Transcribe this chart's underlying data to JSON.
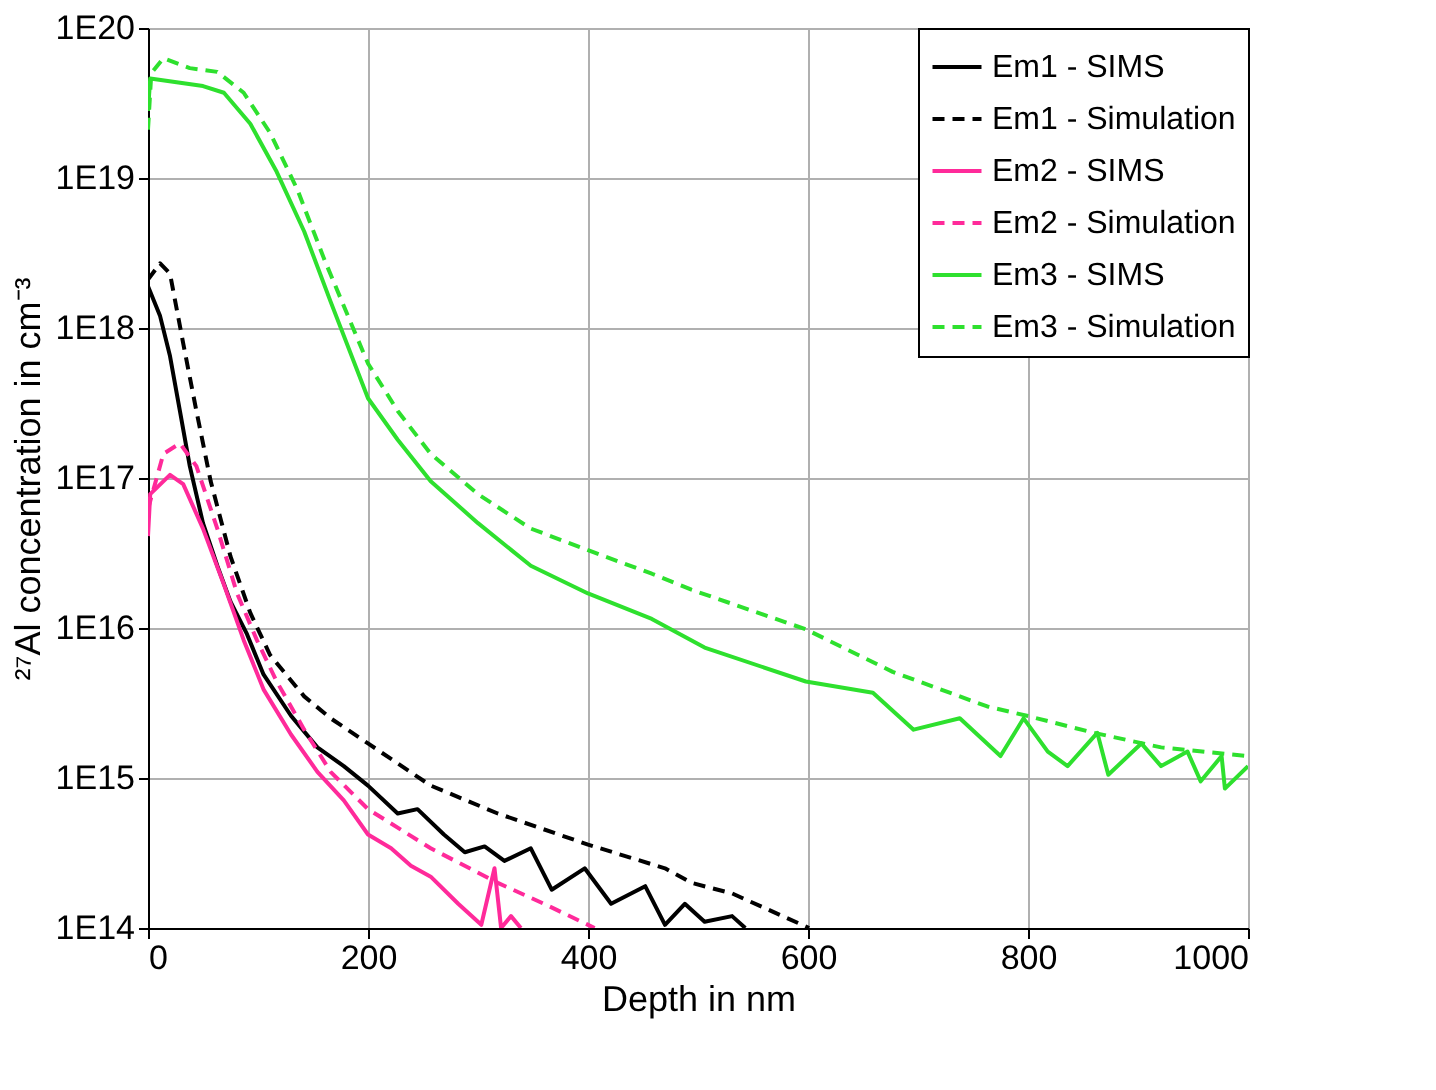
{
  "chart_data": {
    "type": "line",
    "xlabel": "Depth in nm",
    "ylabel": "²⁷Al concentration in cm⁻³",
    "log": true,
    "grid": true,
    "legend": "top right",
    "xlim": [
      0,
      1000
    ],
    "xticks": [
      0,
      200,
      400,
      600,
      800,
      1000
    ],
    "ylim": [
      100000000000000.0,
      1e+20
    ],
    "yticks": [
      {
        "value": 100000000000000.0,
        "label": "1E14"
      },
      {
        "value": 1000000000000000.0,
        "label": "1E15"
      },
      {
        "value": 1e+16,
        "label": "1E16"
      },
      {
        "value": 1e+17,
        "label": "1E17"
      },
      {
        "value": 1e+18,
        "label": "1E18"
      },
      {
        "value": 1e+19,
        "label": "1E19"
      },
      {
        "value": 1e+20,
        "label": "1E20"
      }
    ],
    "series": [
      {
        "name": "Em1 - SIMS",
        "color": "#000000",
        "line_style": "solid",
        "x": [
          0,
          11,
          20,
          29,
          38,
          50,
          63,
          75,
          90,
          105,
          130,
          154,
          178,
          200,
          227,
          245,
          269,
          288,
          306,
          324,
          348,
          367,
          397,
          421,
          452,
          470,
          488,
          506,
          531,
          543
        ],
        "values": [
          1.9e+18,
          1.2e+18,
          6.5e+17,
          2.8e+17,
          1.2e+17,
          5e+16,
          2.6e+16,
          1.5e+16,
          9100000000000000.0,
          4900000000000000.0,
          2600000000000000.0,
          1600000000000000.0,
          1200000000000000.0,
          890000000000000.0,
          580000000000000.0,
          620000000000000.0,
          420000000000000.0,
          320000000000000.0,
          350000000000000.0,
          280000000000000.0,
          340000000000000.0,
          180000000000000.0,
          250000000000000.0,
          145000000000000.0,
          190000000000000.0,
          105000000000000.0,
          145000000000000.0,
          110000000000000.0,
          120000000000000.0,
          100000000000000.0
        ]
      },
      {
        "name": "Em1 - Simulation",
        "color": "#000000",
        "line_style": "dashed",
        "x": [
          0,
          11,
          20,
          32,
          44,
          57,
          75,
          93,
          111,
          142,
          166,
          200,
          257,
          318,
          400,
          470,
          494,
          531,
          601
        ],
        "values": [
          2.1e+18,
          2.7e+18,
          2.3e+18,
          7.9e+17,
          2.8e+17,
          9.5e+16,
          3e+16,
          1.26e+16,
          6600000000000000.0,
          3500000000000000.0,
          2500000000000000.0,
          1700000000000000.0,
          890000000000000.0,
          580000000000000.0,
          360000000000000.0,
          250000000000000.0,
          200000000000000.0,
          170000000000000.0,
          100000000000000.0
        ]
      },
      {
        "name": "Em2 - SIMS",
        "color": "#ff2a9a",
        "line_style": "solid",
        "x": [
          0,
          2,
          20,
          32,
          50,
          69,
          87,
          105,
          130,
          154,
          178,
          200,
          221,
          239,
          257,
          282,
          303,
          315,
          321,
          330,
          339
        ],
        "values": [
          4.1e+16,
          7.8e+16,
          1.05e+17,
          9.1e+16,
          4.6e+16,
          1.95e+16,
          8300000000000000.0,
          3900000000000000.0,
          1950000000000000.0,
          1100000000000000.0,
          710000000000000.0,
          420000000000000.0,
          340000000000000.0,
          260000000000000.0,
          220000000000000.0,
          145000000000000.0,
          105000000000000.0,
          250000000000000.0,
          100000000000000.0,
          120000000000000.0,
          100000000000000.0
        ]
      },
      {
        "name": "Em2 - Simulation",
        "color": "#ff2a9a",
        "line_style": "dashed",
        "x": [
          0,
          14,
          29,
          44,
          63,
          81,
          99,
          117,
          142,
          166,
          200,
          257,
          318,
          360,
          406
        ],
        "values": [
          6.2e+16,
          1.45e+17,
          1.7e+17,
          1.2e+17,
          4.6e+16,
          1.7e+16,
          8300000000000000.0,
          4400000000000000.0,
          2100000000000000.0,
          1100000000000000.0,
          620000000000000.0,
          340000000000000.0,
          200000000000000.0,
          145000000000000.0,
          100000000000000.0
        ]
      },
      {
        "name": "Em3 - SIMS",
        "color": "#2ee02e",
        "line_style": "solid",
        "x": [
          0,
          2,
          50,
          69,
          93,
          117,
          142,
          166,
          200,
          227,
          257,
          300,
          348,
          400,
          458,
          506,
          598,
          659,
          696,
          738,
          775,
          796,
          818,
          836,
          863,
          873,
          903,
          921,
          945,
          957,
          976,
          979,
          1000
        ],
        "values": [
          2.8e+19,
          4.6e+19,
          4.1e+19,
          3.7e+19,
          2.3e+19,
          1.1e+19,
          4.4e+18,
          1.5e+18,
          3.4e+17,
          1.8e+17,
          9.5e+16,
          5e+16,
          2.6e+16,
          1.7e+16,
          1.15e+16,
          7400000000000000.0,
          4400000000000000.0,
          3700000000000000.0,
          2100000000000000.0,
          2500000000000000.0,
          1400000000000000.0,
          2500000000000000.0,
          1500000000000000.0,
          1200000000000000.0,
          2000000000000000.0,
          1050000000000000.0,
          1700000000000000.0,
          1200000000000000.0,
          1500000000000000.0,
          950000000000000.0,
          1400000000000000.0,
          850000000000000.0,
          1200000000000000.0
        ]
      },
      {
        "name": "Em3 - Simulation",
        "color": "#2ee02e",
        "line_style": "dashed",
        "x": [
          0,
          3,
          14,
          38,
          63,
          87,
          111,
          136,
          160,
          184,
          200,
          227,
          257,
          300,
          348,
          400,
          458,
          494,
          598,
          677,
          763,
          799,
          860,
          921,
          1000
        ],
        "values": [
          2.1e+19,
          5e+19,
          6.3e+19,
          5.4e+19,
          5.1e+19,
          3.7e+19,
          2e+19,
          8.3e+18,
          2.9e+18,
          1.1e+18,
          5.8e+17,
          2.8e+17,
          1.45e+17,
          7.8e+16,
          4.6e+16,
          3.3e+16,
          2.3e+16,
          1.8e+16,
          9800000000000000.0,
          5100000000000000.0,
          3000000000000000.0,
          2600000000000000.0,
          2000000000000000.0,
          1600000000000000.0,
          1400000000000000.0
        ]
      }
    ]
  }
}
